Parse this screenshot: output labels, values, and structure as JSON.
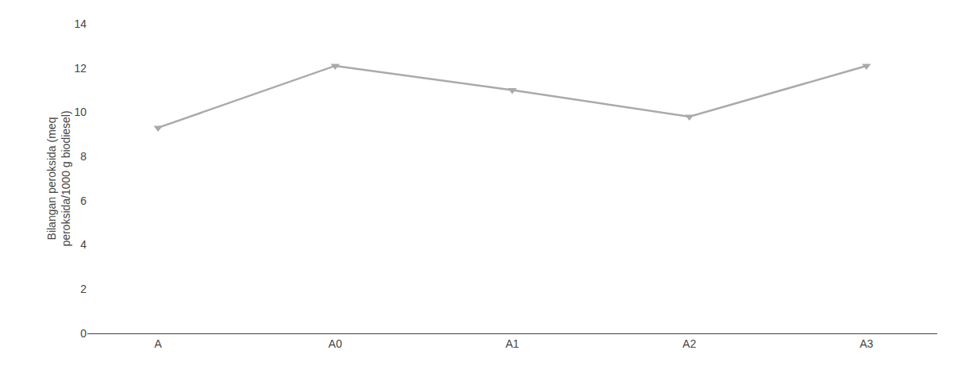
{
  "chart_data": {
    "type": "line",
    "categories": [
      "A",
      "A0",
      "A1",
      "A2",
      "A3"
    ],
    "values": [
      9.3,
      12.1,
      11.0,
      9.8,
      12.1
    ],
    "color": "#aaaaaa",
    "marker": "triangle-down",
    "ylabel": "Bilangan peroksida (meq\nperoksida/1000 g biodiesel)",
    "ylim": [
      0,
      14
    ],
    "yticks": [
      0,
      2,
      4,
      6,
      8,
      10,
      12,
      14
    ],
    "grid": false
  }
}
